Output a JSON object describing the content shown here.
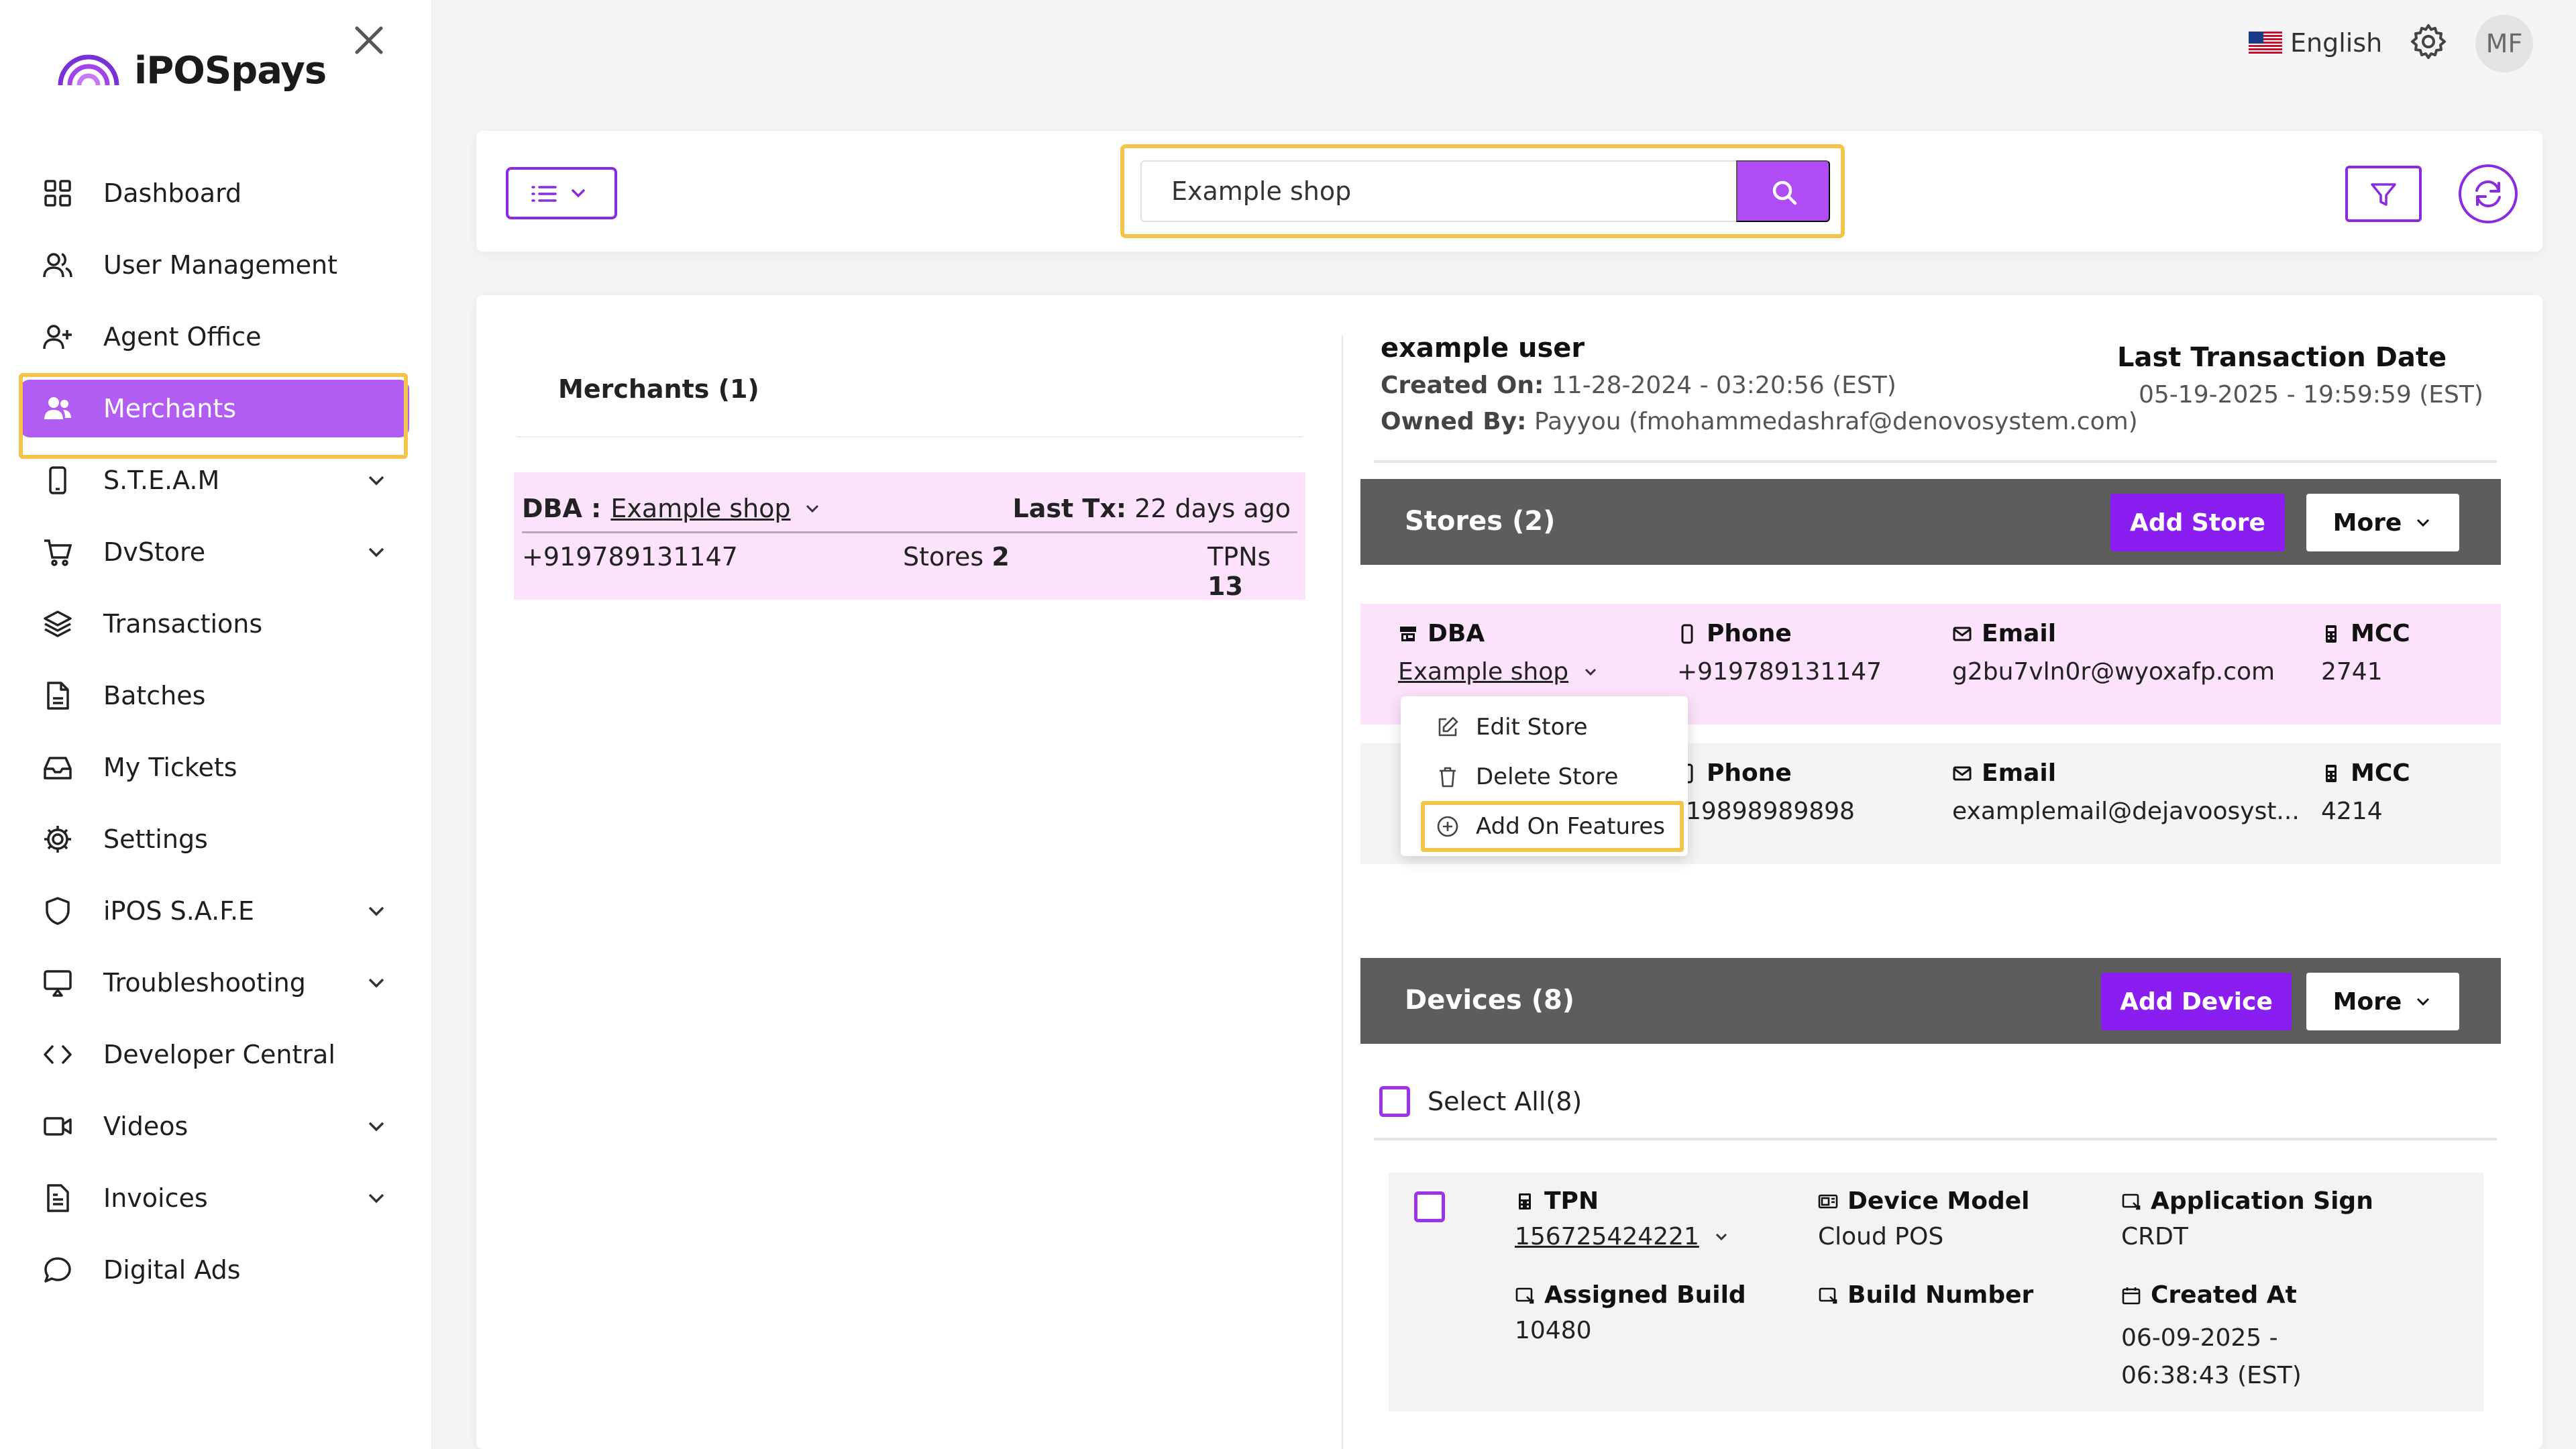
{
  "app": {
    "logo_text": "iPOSpays"
  },
  "sidebar": {
    "items": [
      {
        "label": "Dashboard",
        "icon": "grid-icon"
      },
      {
        "label": "User Management",
        "icon": "users-icon"
      },
      {
        "label": "Agent Office",
        "icon": "user-plus-icon"
      },
      {
        "label": "Merchants",
        "icon": "merchants-icon",
        "active": true
      },
      {
        "label": "S.T.E.A.M",
        "icon": "phone-icon",
        "expandable": true
      },
      {
        "label": "DvStore",
        "icon": "cart-icon",
        "expandable": true
      },
      {
        "label": "Transactions",
        "icon": "layers-icon"
      },
      {
        "label": "Batches",
        "icon": "file-icon"
      },
      {
        "label": "My Tickets",
        "icon": "inbox-icon"
      },
      {
        "label": "Settings",
        "icon": "gear-icon"
      },
      {
        "label": "iPOS S.A.F.E",
        "icon": "shield-icon",
        "expandable": true
      },
      {
        "label": "Troubleshooting",
        "icon": "monitor-icon",
        "expandable": true
      },
      {
        "label": "Developer Central",
        "icon": "code-icon"
      },
      {
        "label": "Videos",
        "icon": "video-icon",
        "expandable": true
      },
      {
        "label": "Invoices",
        "icon": "invoice-icon",
        "expandable": true
      },
      {
        "label": "Digital Ads",
        "icon": "message-icon"
      }
    ]
  },
  "header": {
    "language": "English",
    "avatar_initials": "MF"
  },
  "search": {
    "value": "Example shop"
  },
  "merchants": {
    "title": "Merchants (1)",
    "card": {
      "dba_label": "DBA :",
      "dba_name": "Example shop",
      "last_tx_label": "Last Tx:",
      "last_tx_value": "22 days ago",
      "phone": "+919789131147",
      "stores_label": "Stores",
      "stores_count": "2",
      "tpns_label": "TPNs",
      "tpns_count": "13"
    }
  },
  "detail": {
    "user_name": "example user",
    "created_label": "Created On:",
    "created_value": "11-28-2024 - 03:20:56 (EST)",
    "owned_label": "Owned By:",
    "owned_value": "Payyou (fmohammedashraf@denovosystem.com)",
    "last_tx_title": "Last Transaction Date",
    "last_tx_date": "05-19-2025 - 19:59:59 (EST)"
  },
  "stores": {
    "title": "Stores (2)",
    "add_label": "Add Store",
    "more_label": "More",
    "col_dba": "DBA",
    "col_phone": "Phone",
    "col_email": "Email",
    "col_mcc": "MCC",
    "rows": [
      {
        "dba": "Example shop",
        "phone": "+919789131147",
        "email": "g2bu7vln0r@wyoxafp.com",
        "mcc": "2741"
      },
      {
        "dba": "",
        "phone": "-19898989898",
        "email": "examplemail@dejavoosyst...",
        "mcc": "4214"
      }
    ]
  },
  "store_menu": {
    "items": [
      {
        "label": "Edit Store",
        "icon": "edit-icon"
      },
      {
        "label": "Delete Store",
        "icon": "trash-icon"
      },
      {
        "label": "Add On Features",
        "icon": "plus-circle-icon"
      }
    ]
  },
  "devices": {
    "title": "Devices (8)",
    "add_label": "Add Device",
    "more_label": "More",
    "select_all": "Select All(8)",
    "card": {
      "tpn_label": "TPN",
      "tpn_value": "156725424221",
      "model_label": "Device Model",
      "model_value": "Cloud POS",
      "appsign_label": "Application Sign",
      "appsign_value": "CRDT",
      "build_label": "Assigned Build",
      "build_value": "10480",
      "buildnum_label": "Build Number",
      "buildnum_value": "",
      "created_label": "Created At",
      "created_value": "06-09-2025 - 06:38:43 (EST)"
    }
  },
  "colors": {
    "accent": "#8a1ef0",
    "active_nav": "#b15cf2",
    "highlight": "#f3c54b",
    "section_header": "#5d5d5d",
    "row_pink": "#fde2fb"
  }
}
